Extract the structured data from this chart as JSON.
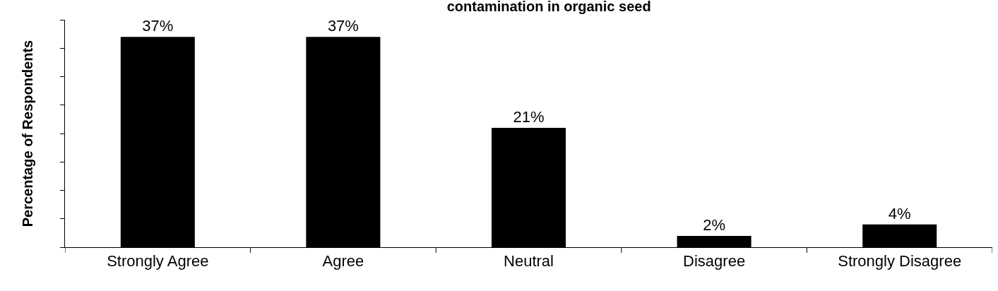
{
  "chart_data": {
    "type": "bar",
    "title": "contamination in organic seed",
    "ylabel": "Percentage of Respondents",
    "categories": [
      "Strongly Agree",
      "Agree",
      "Neutral",
      "Disagree",
      "Strongly Disagree"
    ],
    "values": [
      37,
      37,
      21,
      2,
      4
    ],
    "value_labels": [
      "37%",
      "37%",
      "21%",
      "2%",
      "4%"
    ],
    "color": "#000000",
    "ylim": [
      0,
      40
    ],
    "yticks": [
      0,
      {
        "value": 5,
        "label": null
      },
      {
        "value": 10,
        "label": null
      },
      {
        "value": 15,
        "label": null
      },
      {
        "value": 20,
        "label": null
      },
      {
        "value": 25,
        "label": null
      },
      {
        "value": 30,
        "label": null
      },
      {
        "value": 35,
        "label": null
      },
      {
        "value": 40,
        "label": null
      }
    ],
    "tick_labels": "x"
  }
}
